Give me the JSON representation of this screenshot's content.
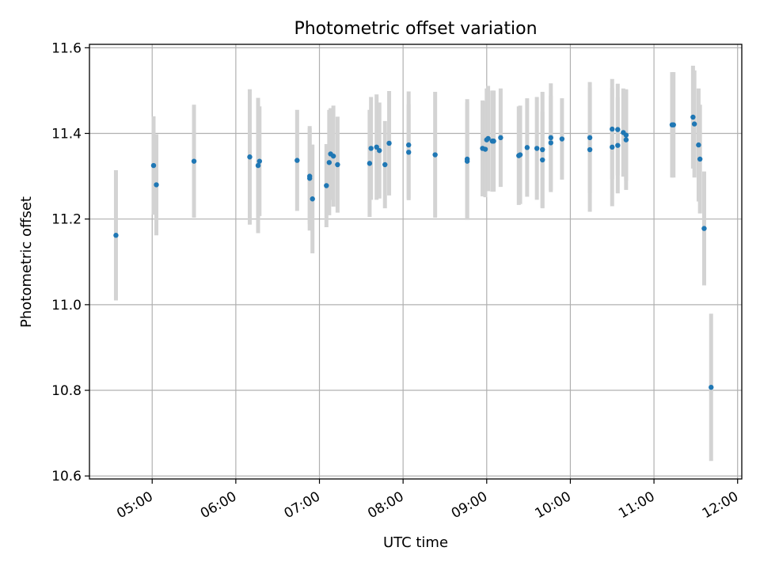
{
  "chart_data": {
    "type": "scatter",
    "title": "Photometric offset variation",
    "xlabel": "UTC time",
    "ylabel": "Photometric offset",
    "x_tick_labels": [
      "05:00",
      "06:00",
      "07:00",
      "08:00",
      "09:00",
      "10:00",
      "11:00",
      "12:00"
    ],
    "y_tick_labels": [
      "10.6",
      "10.8",
      "11.0",
      "11.2",
      "11.4",
      "11.6"
    ],
    "y_ticks": [
      10.6,
      10.8,
      11.0,
      11.2,
      11.4,
      11.6
    ],
    "xlim": [
      "04:15",
      "12:03"
    ],
    "ylim": [
      10.593,
      11.608
    ],
    "grid": true,
    "colors": {
      "points": "#1f77b4",
      "errorbars": "#d3d3d3",
      "grid": "#b0b0b0"
    },
    "series": [
      {
        "x": [
          "04:34",
          "05:01",
          "05:03",
          "05:30",
          "06:10",
          "06:16",
          "06:17",
          "06:44",
          "06:53",
          "06:53",
          "06:55",
          "07:05",
          "07:07",
          "07:08",
          "07:10",
          "07:13",
          "07:36",
          "07:37",
          "07:41",
          "07:43",
          "07:47",
          "07:50",
          "08:04",
          "08:04",
          "08:23",
          "08:46",
          "08:46",
          "08:57",
          "08:59",
          "09:00",
          "09:01",
          "09:04",
          "09:05",
          "09:10",
          "09:23",
          "09:24",
          "09:29",
          "09:36",
          "09:40",
          "09:40",
          "09:46",
          "09:46",
          "09:54",
          "10:14",
          "10:14",
          "10:30",
          "10:30",
          "10:34",
          "10:34",
          "10:38",
          "10:40",
          "10:40",
          "11:13",
          "11:14",
          "11:28",
          "11:29",
          "11:32",
          "11:33",
          "11:36",
          "11:41"
        ],
        "y": [
          11.162,
          11.325,
          11.28,
          11.335,
          11.345,
          11.325,
          11.335,
          11.337,
          11.3,
          11.295,
          11.247,
          11.278,
          11.332,
          11.352,
          11.347,
          11.327,
          11.33,
          11.365,
          11.368,
          11.36,
          11.327,
          11.377,
          11.373,
          11.356,
          11.35,
          11.34,
          11.335,
          11.365,
          11.363,
          11.385,
          11.388,
          11.382,
          11.382,
          11.39,
          11.348,
          11.35,
          11.367,
          11.365,
          11.362,
          11.338,
          11.39,
          11.378,
          11.387,
          11.39,
          11.362,
          11.41,
          11.368,
          11.409,
          11.372,
          11.402,
          11.396,
          11.385,
          11.42,
          11.42,
          11.438,
          11.422,
          11.373,
          11.34,
          11.178,
          10.807
        ],
        "err": [
          0.152,
          0.115,
          0.118,
          0.132,
          0.158,
          0.158,
          0.128,
          0.118,
          0.112,
          0.122,
          0.127,
          0.097,
          0.123,
          0.107,
          0.118,
          0.112,
          0.125,
          0.12,
          0.123,
          0.112,
          0.102,
          0.122,
          0.125,
          0.112,
          0.147,
          0.14,
          0.137,
          0.112,
          0.112,
          0.12,
          0.123,
          0.118,
          0.118,
          0.115,
          0.115,
          0.115,
          0.115,
          0.12,
          0.135,
          0.113,
          0.127,
          0.11,
          0.095,
          0.13,
          0.145,
          0.117,
          0.138,
          0.107,
          0.112,
          0.103,
          0.107,
          0.117,
          0.123,
          0.123,
          0.12,
          0.125,
          0.132,
          0.127,
          0.133,
          0.172
        ]
      }
    ]
  }
}
